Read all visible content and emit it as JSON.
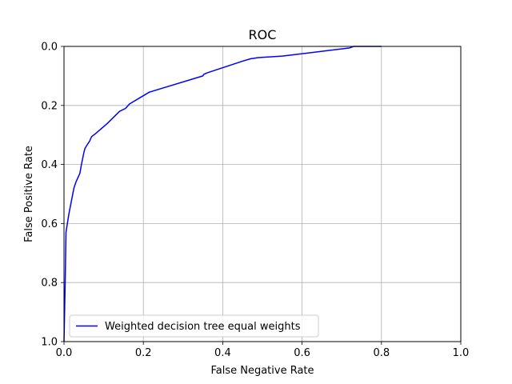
{
  "chart_data": {
    "type": "line",
    "title": "ROC",
    "xlabel": "False Negative Rate",
    "ylabel": "False Positive Rate",
    "xlim": [
      0.0,
      1.0
    ],
    "ylim": [
      1.0,
      0.0
    ],
    "y_inverted": true,
    "grid": true,
    "legend_position": "lower-left",
    "x_ticks": [
      "0.0",
      "0.2",
      "0.4",
      "0.6",
      "0.8",
      "1.0"
    ],
    "y_ticks": [
      "0.0",
      "0.2",
      "0.4",
      "0.6",
      "0.8",
      "1.0"
    ],
    "series": [
      {
        "name": "Weighted decision tree equal weights",
        "color": "#0000ff",
        "x": [
          0.0,
          0.003,
          0.005,
          0.012,
          0.025,
          0.03,
          0.04,
          0.044,
          0.05,
          0.053,
          0.06,
          0.065,
          0.068,
          0.07,
          0.08,
          0.11,
          0.14,
          0.155,
          0.165,
          0.19,
          0.215,
          0.35,
          0.352,
          0.36,
          0.45,
          0.47,
          0.49,
          0.55,
          0.72,
          0.73,
          0.8
        ],
        "y": [
          1.0,
          0.8,
          0.63,
          0.57,
          0.48,
          0.46,
          0.43,
          0.4,
          0.36,
          0.345,
          0.33,
          0.32,
          0.31,
          0.305,
          0.295,
          0.26,
          0.22,
          0.21,
          0.195,
          0.175,
          0.155,
          0.1,
          0.095,
          0.09,
          0.05,
          0.042,
          0.038,
          0.033,
          0.005,
          0.0,
          0.0
        ]
      }
    ]
  }
}
